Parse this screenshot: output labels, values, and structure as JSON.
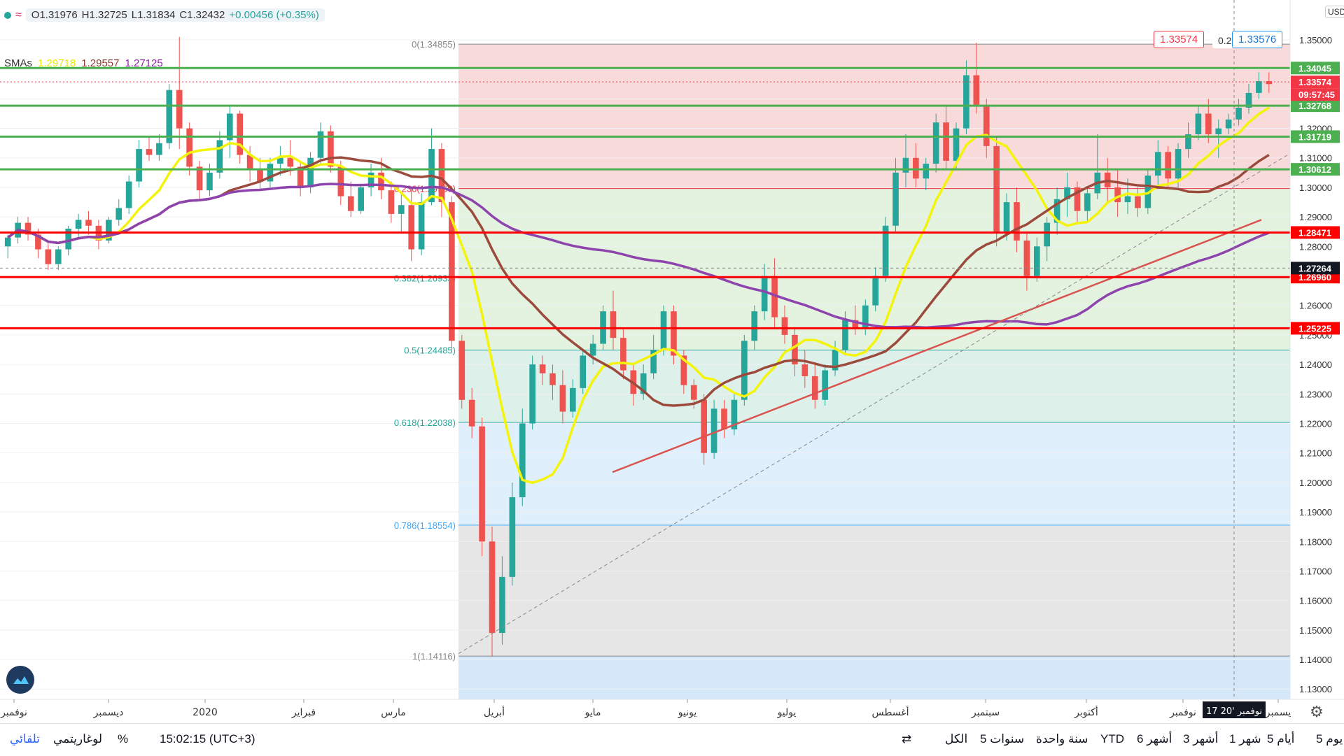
{
  "header": {
    "open": "O1.31976",
    "high": "H1.32725",
    "low": "L1.31834",
    "close": "C1.32432",
    "change": "+0.00456 (+0.35%)",
    "smas_label": "SMAs",
    "sma1": "1.29718",
    "sma2": "1.29557",
    "sma3": "1.27125"
  },
  "colors": {
    "up": "#26a69a",
    "down": "#ef5350",
    "sma_fast": "#f4f40a",
    "sma_mid": "#9b4a3c",
    "sma_slow": "#8e44ad",
    "support": "#ff0000",
    "resistance": "#4caf50"
  },
  "chart_data": {
    "type": "candlestick",
    "ylim": [
      1.125,
      1.36
    ],
    "y_ticks": [
      "1.35000",
      "1.34000",
      "1.33000",
      "1.32000",
      "1.31000",
      "1.30000",
      "1.29000",
      "1.28000",
      "1.27000",
      "1.26000",
      "1.25000",
      "1.24000",
      "1.23000",
      "1.22000",
      "1.21000",
      "1.20000",
      "1.19000",
      "1.18000",
      "1.17000",
      "1.16000",
      "1.15000",
      "1.14000",
      "1.13000"
    ],
    "y_tick_values": [
      1.35,
      1.34,
      1.33,
      1.32,
      1.31,
      1.3,
      1.29,
      1.28,
      1.27,
      1.26,
      1.25,
      1.24,
      1.23,
      1.22,
      1.21,
      1.2,
      1.19,
      1.18,
      1.17,
      1.16,
      1.15,
      1.14,
      1.13
    ],
    "x_labels": [
      "نوفمبر",
      "ديسمبر",
      "2020",
      "فبراير",
      "مارس",
      "أبريل",
      "مايو",
      "يونيو",
      "يوليو",
      "أغسطس",
      "سبتمبر",
      "أكتوبر",
      "نوفمبر",
      "يسمبر"
    ],
    "crosshair_date": "17 نوفمبر '20",
    "green_levels": [
      "1.34045",
      "1.32768",
      "1.31719",
      "1.30612"
    ],
    "green_level_values": [
      1.34045,
      1.32768,
      1.31719,
      1.30612
    ],
    "red_levels": [
      "1.28471",
      "1.26960",
      "1.25225"
    ],
    "red_level_values": [
      1.28471,
      1.2696,
      1.25225
    ],
    "current_price": "1.33574",
    "current_price_value": 1.33574,
    "countdown": "09:57:45",
    "crosshair_price": "1.27264",
    "crosshair_price_value": 1.27264,
    "fib_levels": [
      {
        "label": "0(1.34855)",
        "value": 1.34855
      },
      {
        "label": "0.236(1.29960)",
        "value": 1.2996
      },
      {
        "label": "0.382(1.26933)",
        "value": 1.26933
      },
      {
        "label": "0.5(1.24485)",
        "value": 1.24485
      },
      {
        "label": "0.618(1.22038)",
        "value": 1.22038
      },
      {
        "label": "0.786(1.18554)",
        "value": 1.18554
      },
      {
        "label": "1(1.14116)",
        "value": 1.14116
      }
    ],
    "candles": [
      [
        1.28,
        1.284,
        1.276,
        1.283
      ],
      [
        1.283,
        1.29,
        1.281,
        1.288
      ],
      [
        1.288,
        1.29,
        1.282,
        1.284
      ],
      [
        1.284,
        1.286,
        1.276,
        1.279
      ],
      [
        1.279,
        1.281,
        1.272,
        1.274
      ],
      [
        1.274,
        1.28,
        1.272,
        1.279
      ],
      [
        1.279,
        1.287,
        1.277,
        1.286
      ],
      [
        1.286,
        1.291,
        1.283,
        1.289
      ],
      [
        1.289,
        1.292,
        1.284,
        1.287
      ],
      [
        1.287,
        1.289,
        1.279,
        1.282
      ],
      [
        1.282,
        1.29,
        1.281,
        1.289
      ],
      [
        1.289,
        1.296,
        1.287,
        1.293
      ],
      [
        1.293,
        1.304,
        1.291,
        1.302
      ],
      [
        1.302,
        1.316,
        1.3,
        1.313
      ],
      [
        1.313,
        1.317,
        1.309,
        1.311
      ],
      [
        1.311,
        1.318,
        1.309,
        1.315
      ],
      [
        1.315,
        1.335,
        1.313,
        1.333
      ],
      [
        1.333,
        1.351,
        1.313,
        1.32
      ],
      [
        1.32,
        1.322,
        1.304,
        1.307
      ],
      [
        1.307,
        1.309,
        1.296,
        1.299
      ],
      [
        1.299,
        1.308,
        1.297,
        1.305
      ],
      [
        1.305,
        1.319,
        1.303,
        1.316
      ],
      [
        1.316,
        1.328,
        1.31,
        1.325
      ],
      [
        1.325,
        1.326,
        1.308,
        1.311
      ],
      [
        1.311,
        1.314,
        1.302,
        1.306
      ],
      [
        1.306,
        1.31,
        1.299,
        1.302
      ],
      [
        1.302,
        1.31,
        1.3,
        1.308
      ],
      [
        1.308,
        1.314,
        1.304,
        1.31
      ],
      [
        1.31,
        1.316,
        1.304,
        1.307
      ],
      [
        1.307,
        1.309,
        1.297,
        1.3
      ],
      [
        1.3,
        1.312,
        1.298,
        1.31
      ],
      [
        1.31,
        1.322,
        1.308,
        1.319
      ],
      [
        1.319,
        1.321,
        1.305,
        1.307
      ],
      [
        1.307,
        1.309,
        1.294,
        1.297
      ],
      [
        1.297,
        1.302,
        1.29,
        1.292
      ],
      [
        1.292,
        1.301,
        1.291,
        1.3
      ],
      [
        1.3,
        1.308,
        1.297,
        1.305
      ],
      [
        1.305,
        1.31,
        1.296,
        1.299
      ],
      [
        1.299,
        1.302,
        1.288,
        1.291
      ],
      [
        1.291,
        1.298,
        1.285,
        1.294
      ],
      [
        1.294,
        1.3,
        1.275,
        1.279
      ],
      [
        1.279,
        1.298,
        1.277,
        1.295
      ],
      [
        1.295,
        1.32,
        1.294,
        1.313
      ],
      [
        1.313,
        1.315,
        1.29,
        1.295
      ],
      [
        1.295,
        1.297,
        1.245,
        1.248
      ],
      [
        1.248,
        1.25,
        1.225,
        1.228
      ],
      [
        1.228,
        1.232,
        1.215,
        1.219
      ],
      [
        1.219,
        1.222,
        1.175,
        1.18
      ],
      [
        1.18,
        1.185,
        1.141,
        1.149
      ],
      [
        1.149,
        1.175,
        1.145,
        1.168
      ],
      [
        1.168,
        1.2,
        1.165,
        1.195
      ],
      [
        1.195,
        1.225,
        1.192,
        1.22
      ],
      [
        1.22,
        1.243,
        1.218,
        1.24
      ],
      [
        1.24,
        1.243,
        1.233,
        1.237
      ],
      [
        1.237,
        1.24,
        1.228,
        1.233
      ],
      [
        1.233,
        1.238,
        1.22,
        1.224
      ],
      [
        1.224,
        1.235,
        1.222,
        1.232
      ],
      [
        1.232,
        1.245,
        1.23,
        1.243
      ],
      [
        1.243,
        1.25,
        1.24,
        1.247
      ],
      [
        1.247,
        1.26,
        1.245,
        1.258
      ],
      [
        1.258,
        1.265,
        1.245,
        1.249
      ],
      [
        1.249,
        1.252,
        1.235,
        1.238
      ],
      [
        1.238,
        1.24,
        1.226,
        1.23
      ],
      [
        1.23,
        1.24,
        1.228,
        1.237
      ],
      [
        1.237,
        1.25,
        1.235,
        1.245
      ],
      [
        1.245,
        1.26,
        1.243,
        1.258
      ],
      [
        1.258,
        1.26,
        1.24,
        1.243
      ],
      [
        1.243,
        1.245,
        1.23,
        1.233
      ],
      [
        1.233,
        1.235,
        1.225,
        1.228
      ],
      [
        1.228,
        1.23,
        1.206,
        1.21
      ],
      [
        1.21,
        1.228,
        1.208,
        1.225
      ],
      [
        1.225,
        1.228,
        1.215,
        1.218
      ],
      [
        1.218,
        1.23,
        1.216,
        1.228
      ],
      [
        1.228,
        1.25,
        1.226,
        1.248
      ],
      [
        1.248,
        1.26,
        1.245,
        1.258
      ],
      [
        1.258,
        1.274,
        1.255,
        1.27
      ],
      [
        1.27,
        1.276,
        1.252,
        1.256
      ],
      [
        1.256,
        1.26,
        1.247,
        1.25
      ],
      [
        1.25,
        1.252,
        1.236,
        1.24
      ],
      [
        1.24,
        1.245,
        1.232,
        1.236
      ],
      [
        1.236,
        1.24,
        1.225,
        1.228
      ],
      [
        1.228,
        1.24,
        1.226,
        1.238
      ],
      [
        1.238,
        1.248,
        1.236,
        1.245
      ],
      [
        1.245,
        1.258,
        1.243,
        1.255
      ],
      [
        1.255,
        1.26,
        1.25,
        1.252
      ],
      [
        1.252,
        1.262,
        1.25,
        1.26
      ],
      [
        1.26,
        1.273,
        1.258,
        1.27
      ],
      [
        1.27,
        1.29,
        1.268,
        1.287
      ],
      [
        1.287,
        1.31,
        1.285,
        1.305
      ],
      [
        1.305,
        1.318,
        1.3,
        1.31
      ],
      [
        1.31,
        1.315,
        1.3,
        1.303
      ],
      [
        1.303,
        1.31,
        1.299,
        1.308
      ],
      [
        1.308,
        1.325,
        1.305,
        1.322
      ],
      [
        1.322,
        1.328,
        1.306,
        1.309
      ],
      [
        1.309,
        1.322,
        1.306,
        1.32
      ],
      [
        1.32,
        1.343,
        1.318,
        1.338
      ],
      [
        1.338,
        1.349,
        1.325,
        1.328
      ],
      [
        1.328,
        1.33,
        1.31,
        1.314
      ],
      [
        1.314,
        1.317,
        1.28,
        1.285
      ],
      [
        1.285,
        1.298,
        1.282,
        1.295
      ],
      [
        1.295,
        1.3,
        1.278,
        1.282
      ],
      [
        1.282,
        1.285,
        1.265,
        1.27
      ],
      [
        1.27,
        1.283,
        1.268,
        1.28
      ],
      [
        1.28,
        1.29,
        1.275,
        1.288
      ],
      [
        1.288,
        1.3,
        1.284,
        1.296
      ],
      [
        1.296,
        1.305,
        1.29,
        1.3
      ],
      [
        1.3,
        1.302,
        1.288,
        1.292
      ],
      [
        1.292,
        1.3,
        1.288,
        1.298
      ],
      [
        1.298,
        1.318,
        1.296,
        1.305
      ],
      [
        1.305,
        1.31,
        1.295,
        1.3
      ],
      [
        1.3,
        1.306,
        1.29,
        1.295
      ],
      [
        1.295,
        1.303,
        1.291,
        1.297
      ],
      [
        1.297,
        1.3,
        1.29,
        1.293
      ],
      [
        1.293,
        1.306,
        1.291,
        1.304
      ],
      [
        1.304,
        1.316,
        1.3,
        1.312
      ],
      [
        1.312,
        1.314,
        1.3,
        1.303
      ],
      [
        1.303,
        1.315,
        1.3,
        1.313
      ],
      [
        1.313,
        1.322,
        1.31,
        1.318
      ],
      [
        1.318,
        1.328,
        1.316,
        1.325
      ],
      [
        1.325,
        1.33,
        1.315,
        1.318
      ],
      [
        1.318,
        1.323,
        1.31,
        1.32
      ],
      [
        1.32,
        1.325,
        1.318,
        1.323
      ],
      [
        1.323,
        1.33,
        1.321,
        1.327
      ],
      [
        1.327,
        1.335,
        1.325,
        1.332
      ],
      [
        1.332,
        1.339,
        1.33,
        1.336
      ],
      [
        1.336,
        1.339,
        1.332,
        1.335
      ]
    ]
  },
  "scale": {
    "currency": "USD",
    "price_tag_red": "1.33574",
    "price_tag_sep": "0.2",
    "price_tag_blue": "1.33576"
  },
  "bottom": {
    "ranges": [
      "يوم 5",
      "أيام 5",
      "شهر 1",
      "أشهر 3",
      "أشهر 6",
      "YTD",
      "سنة واحدة",
      "سنوات 5",
      "الكل"
    ],
    "time": "15:02:15 (UTC+3)",
    "percent": "%",
    "log": "لوغاريتمي",
    "auto": "تلقائي"
  }
}
